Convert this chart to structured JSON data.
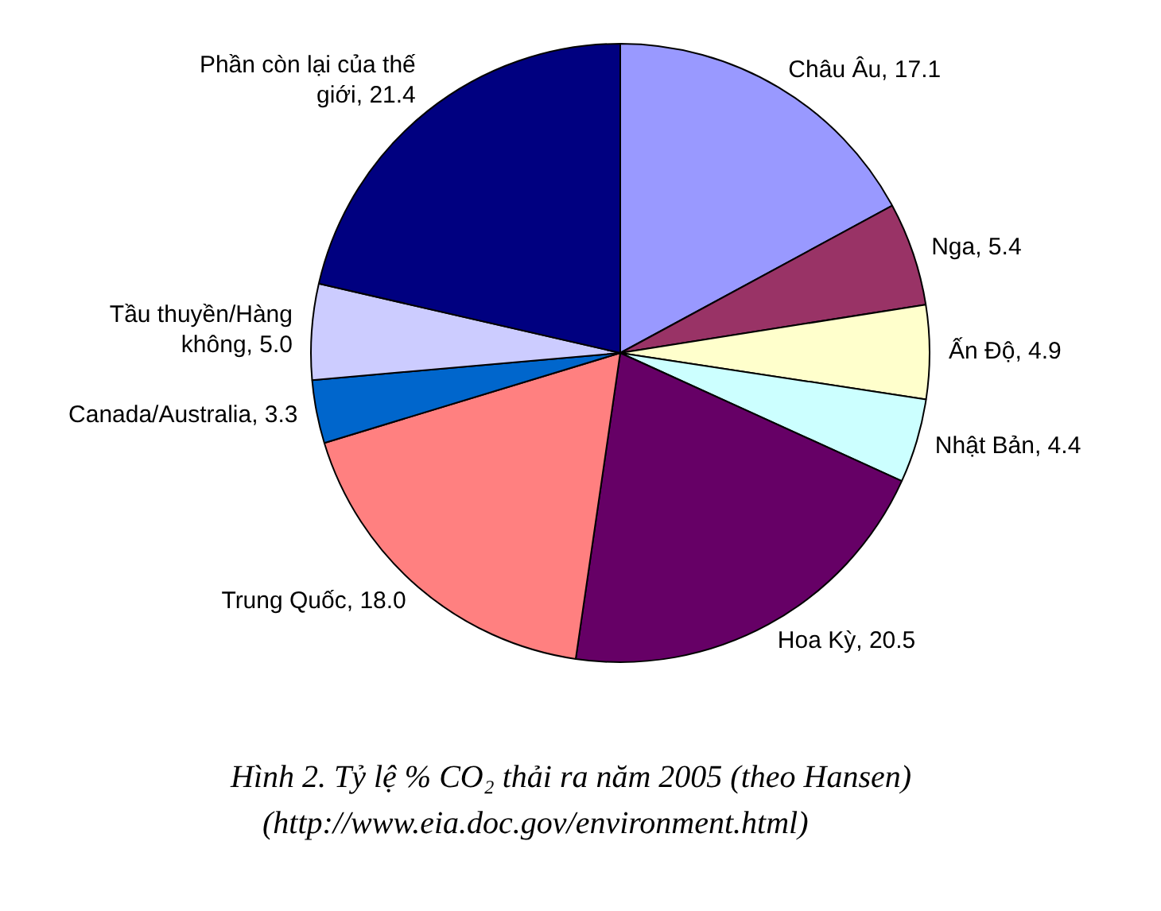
{
  "chart_data": {
    "type": "pie",
    "categories": [
      "Châu Âu",
      "Nga",
      "Ấn Độ",
      "Nhật Bản",
      "Hoa Kỳ",
      "Trung Quốc",
      "Canada/Australia",
      "Tầu thuyền/Hàng không",
      "Phần còn lại của thế giới"
    ],
    "values": [
      17.1,
      5.4,
      4.9,
      4.4,
      20.5,
      18.0,
      3.3,
      5.0,
      21.4
    ],
    "value_labels": [
      "17.1",
      "5.4",
      "4.9",
      "4.4",
      "20.5",
      "18.0",
      "3.3",
      "5.0",
      "21.4"
    ],
    "colors": [
      "#9999ff",
      "#993366",
      "#ffffcc",
      "#ccffff",
      "#660066",
      "#ff8080",
      "#0066cc",
      "#ccccff",
      "#000080"
    ],
    "legend": false,
    "annotations": [
      "Hình 2. Tỷ lệ % CO₂ thải ra năm 2005 (theo Hansen)",
      "(http://www.eia.doc.gov/environment.html)"
    ]
  }
}
